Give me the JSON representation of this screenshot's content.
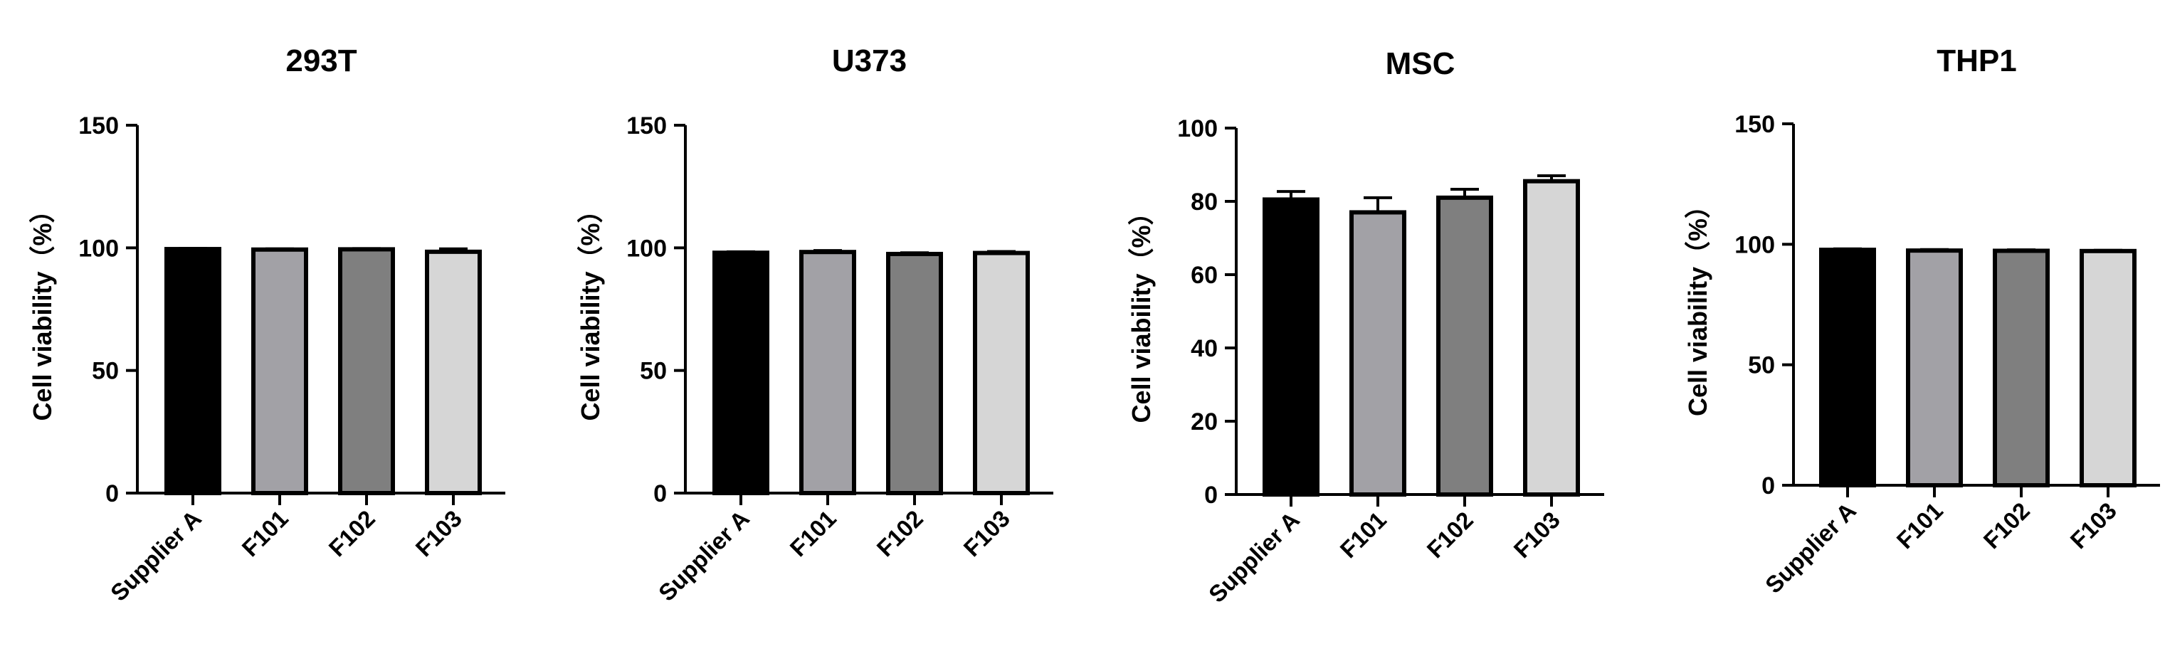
{
  "colors": {
    "bar_fills": [
      "#000000",
      "#a2a1a6",
      "#7f7f7f",
      "#d6d6d6"
    ],
    "axis": "#000000"
  },
  "chart_data": [
    {
      "type": "bar",
      "title": "293T",
      "ylabel": "Cell viability（%）",
      "categories": [
        "Supplier A",
        "F101",
        "F102",
        "F103"
      ],
      "values": [
        99.5,
        99.3,
        99.4,
        98.4
      ],
      "errors": [
        0.3,
        0.3,
        0.3,
        1.2
      ],
      "ylim": [
        0,
        150
      ],
      "yticks": [
        0,
        50,
        100,
        150
      ],
      "grid": false
    },
    {
      "type": "bar",
      "title": "U373",
      "ylabel": "Cell viability（%）",
      "categories": [
        "Supplier A",
        "F101",
        "F102",
        "F103"
      ],
      "values": [
        98.0,
        98.3,
        97.5,
        97.9
      ],
      "errors": [
        0.4,
        0.6,
        0.5,
        0.6
      ],
      "ylim": [
        0,
        150
      ],
      "yticks": [
        0,
        50,
        100,
        150
      ],
      "grid": false
    },
    {
      "type": "bar",
      "title": "MSC",
      "ylabel": "Cell viability（%）",
      "categories": [
        "Supplier A",
        "F101",
        "F102",
        "F103"
      ],
      "values": [
        80.5,
        77.0,
        81.0,
        85.5
      ],
      "errors": [
        2.2,
        4.0,
        2.3,
        1.5
      ],
      "ylim": [
        0,
        100
      ],
      "yticks": [
        0,
        20,
        40,
        60,
        80,
        100
      ],
      "grid": false
    },
    {
      "type": "bar",
      "title": "THP1",
      "ylabel": "Cell viability（%）",
      "categories": [
        "Supplier A",
        "F101",
        "F102",
        "F103"
      ],
      "values": [
        97.7,
        97.4,
        97.3,
        97.2
      ],
      "errors": [
        0.4,
        0.4,
        0.4,
        0.3
      ],
      "ylim": [
        0,
        150
      ],
      "yticks": [
        0,
        50,
        100,
        150
      ],
      "grid": false
    }
  ]
}
